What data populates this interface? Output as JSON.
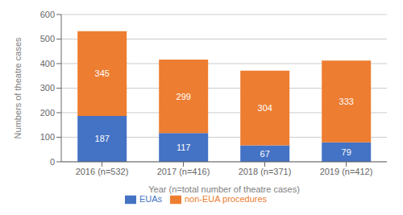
{
  "chart_data": {
    "type": "bar",
    "stacked": true,
    "categories": [
      "2016 (n=532)",
      "2017 (n=416)",
      "2018 (n=371)",
      "2019 (n=412)"
    ],
    "series": [
      {
        "name": "EUAs",
        "color": "#4472C4",
        "values": [
          187,
          117,
          67,
          79
        ]
      },
      {
        "name": "non-EUA procedures",
        "color": "#ED7D31",
        "values": [
          345,
          299,
          304,
          333
        ]
      }
    ],
    "xlabel": "Year (n=total number of theatre cases)",
    "ylabel": "Numbers of theatre cases",
    "ylim": [
      0,
      600
    ],
    "yticks": [
      0,
      100,
      200,
      300,
      400,
      500,
      600
    ],
    "grid": true,
    "legend": "bottom",
    "data_labels": true
  }
}
